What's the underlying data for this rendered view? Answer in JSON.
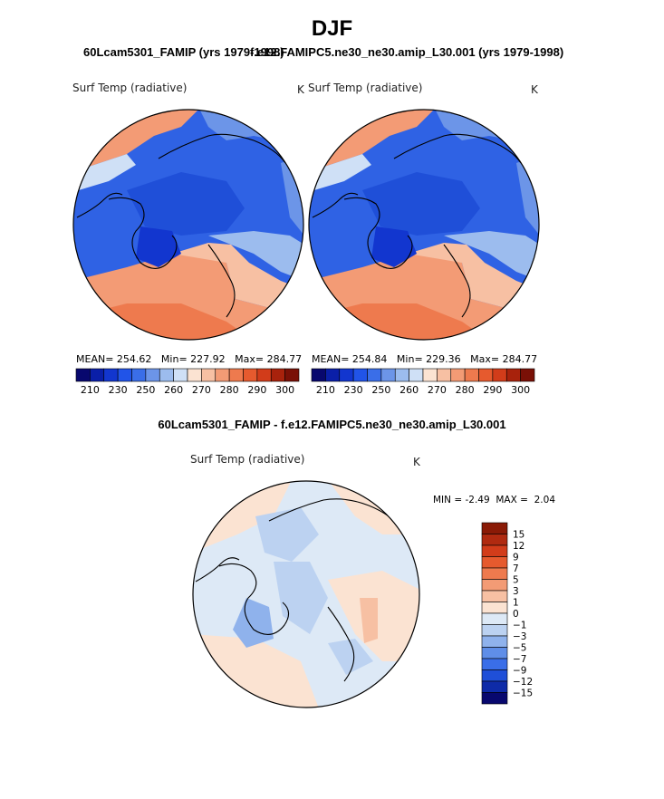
{
  "page": {
    "title": "DJF",
    "subtitle_left": "60Lcam5301_FAMIP (yrs 1979-1998)",
    "subtitle_right": "f.e12.FAMIPC5.ne30_ne30.amip_L30.001 (yrs 1979-1998)",
    "diff_title": "60Lcam5301_FAMIP - f.e12.FAMIPC5.ne30_ne30.amip_L30.001"
  },
  "chart_data": [
    {
      "type": "heatmap",
      "projection": "north-polar-stereographic",
      "panel": "left",
      "title": "Surf Temp (radiative)",
      "units": "K",
      "stats": {
        "mean_label": "MEAN=",
        "mean": "254.62",
        "min_label": "Min=",
        "min": "227.92",
        "max_label": "Max=",
        "max": "284.77"
      },
      "colorbar_ticks": [
        "210",
        "230",
        "250",
        "260",
        "270",
        "280",
        "290",
        "300"
      ],
      "colorbar_colors": [
        "#08086e",
        "#0a1fa8",
        "#1236cf",
        "#2154e8",
        "#3a6ee8",
        "#6c95e8",
        "#9cbcee",
        "#cfe0f6",
        "#fbe3d2",
        "#f7c0a3",
        "#f39b75",
        "#ee7a4e",
        "#e65a2e",
        "#d23c1a",
        "#a8220c",
        "#7a1006"
      ]
    },
    {
      "type": "heatmap",
      "projection": "north-polar-stereographic",
      "panel": "right",
      "title": "Surf Temp (radiative)",
      "units": "K",
      "stats": {
        "mean_label": "MEAN=",
        "mean": "254.84",
        "min_label": "Min=",
        "min": "229.36",
        "max_label": "Max=",
        "max": "284.77"
      },
      "colorbar_ticks": [
        "210",
        "230",
        "250",
        "260",
        "270",
        "280",
        "290",
        "300"
      ],
      "colorbar_colors": [
        "#08086e",
        "#0a1fa8",
        "#1236cf",
        "#2154e8",
        "#3a6ee8",
        "#6c95e8",
        "#9cbcee",
        "#cfe0f6",
        "#fbe3d2",
        "#f7c0a3",
        "#f39b75",
        "#ee7a4e",
        "#e65a2e",
        "#d23c1a",
        "#a8220c",
        "#7a1006"
      ]
    },
    {
      "type": "heatmap",
      "projection": "north-polar-stereographic",
      "panel": "difference",
      "title": "Surf Temp (radiative)",
      "units": "K",
      "stats": {
        "min_label": "MIN =",
        "min": "-2.49",
        "max_label": "MAX =",
        "max": "2.04"
      },
      "colorbar_ticks": [
        "15",
        "12",
        "9",
        "7",
        "5",
        "3",
        "1",
        "0",
        "−1",
        "−3",
        "−5",
        "−7",
        "−9",
        "−12",
        "−15"
      ],
      "colorbar_colors": [
        "#8a1a06",
        "#b02a10",
        "#d23c1a",
        "#e65a2e",
        "#ee7a4e",
        "#f39b75",
        "#f7c0a3",
        "#fbe3d2",
        "#dde9f6",
        "#bcd2f1",
        "#8fb2ec",
        "#5f8ee8",
        "#3a6ee8",
        "#1f4fd8",
        "#0e2ba8",
        "#08086e"
      ]
    }
  ]
}
